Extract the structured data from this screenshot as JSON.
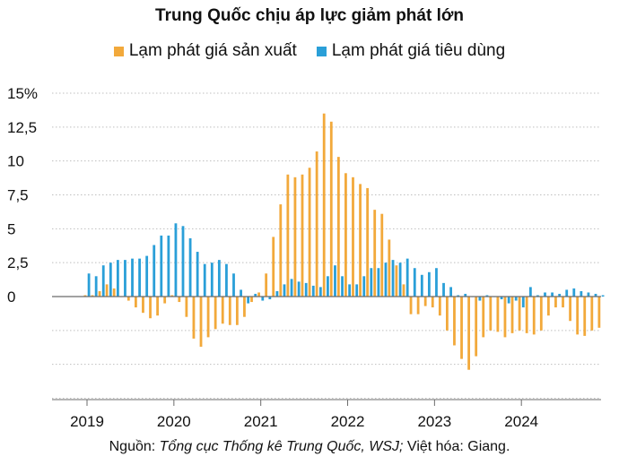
{
  "chart_data": {
    "type": "bar",
    "title": "Trung Quốc chịu áp lực giảm phát lớn",
    "xlabel": "",
    "ylabel": "",
    "ylim": [
      -7.5,
      15
    ],
    "y_ticks": [
      15,
      12.5,
      10,
      7.5,
      5,
      2.5,
      0
    ],
    "y_tick_labels": [
      "15%",
      "12,5",
      "10",
      "7,5",
      "5",
      "2,5",
      "0"
    ],
    "x_year_labels": [
      "2019",
      "2020",
      "2021",
      "2022",
      "2023",
      "2024"
    ],
    "start": "2019-01",
    "months": 72,
    "series": [
      {
        "name": "Lạm phát giá sản xuất",
        "color": "#f2a93b",
        "values": [
          0.1,
          0.1,
          0.4,
          0.9,
          0.6,
          0.0,
          -0.3,
          -0.8,
          -1.2,
          -1.6,
          -1.4,
          -0.5,
          0.1,
          -0.4,
          -1.5,
          -3.1,
          -3.7,
          -3.0,
          -2.4,
          -2.0,
          -2.1,
          -2.1,
          -1.5,
          -0.4,
          0.3,
          1.7,
          4.4,
          6.8,
          9.0,
          8.8,
          9.0,
          9.5,
          10.7,
          13.5,
          12.9,
          10.3,
          9.1,
          8.8,
          8.3,
          8.0,
          6.4,
          6.1,
          4.2,
          2.3,
          0.9,
          -1.3,
          -1.3,
          -0.7,
          -0.8,
          -1.4,
          -2.5,
          -3.6,
          -4.6,
          -5.4,
          -4.4,
          -3.0,
          -2.5,
          -2.6,
          -3.0,
          -2.7,
          -2.5,
          -2.7,
          -2.8,
          -2.5,
          -1.4,
          -0.8,
          -0.8,
          -1.8,
          -2.8,
          -2.9,
          -2.5,
          -2.3
        ],
        "year_labels_note": "monthly YoY %"
      },
      {
        "name": "Lạm phát giá tiêu dùng",
        "color": "#2a9fd8",
        "values": [
          1.7,
          1.5,
          2.3,
          2.5,
          2.7,
          2.7,
          2.8,
          2.8,
          3.0,
          3.8,
          4.5,
          4.5,
          5.4,
          5.2,
          4.3,
          3.3,
          2.4,
          2.5,
          2.7,
          2.4,
          1.7,
          0.5,
          -0.5,
          0.2,
          -0.3,
          -0.2,
          0.4,
          0.9,
          1.3,
          1.1,
          1.0,
          0.8,
          0.7,
          1.5,
          2.3,
          1.5,
          0.9,
          0.9,
          1.5,
          2.1,
          2.1,
          2.5,
          2.7,
          2.5,
          2.8,
          2.1,
          1.6,
          1.8,
          2.1,
          1.0,
          0.7,
          0.1,
          0.2,
          0.0,
          -0.3,
          0.1,
          0.0,
          -0.2,
          -0.5,
          -0.3,
          -0.8,
          0.7,
          0.1,
          0.3,
          0.3,
          0.2,
          0.5,
          0.6,
          0.4,
          0.3,
          0.2,
          0.1
        ]
      }
    ]
  },
  "source": {
    "prefix": "Nguồn: ",
    "italic": "Tổng cục Thống kê Trung Quốc, WSJ;",
    "suffix": " Việt hóa: Giang."
  }
}
